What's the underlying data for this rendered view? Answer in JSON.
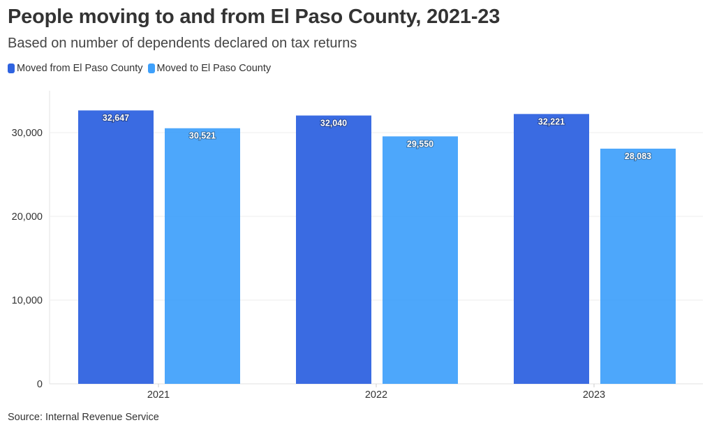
{
  "header": {
    "title": "People moving to and from El Paso County, 2021-23",
    "subtitle": "Based on number of dependents declared on tax returns"
  },
  "footer": {
    "source": "Source: Internal Revenue Service"
  },
  "chart_data": {
    "type": "bar",
    "title": "People moving to and from El Paso County, 2021-23",
    "subtitle": "Based on number of dependents declared on tax returns",
    "categories": [
      "2021",
      "2022",
      "2023"
    ],
    "series": [
      {
        "name": "Moved from El Paso County",
        "color": "#2f63e0",
        "values": [
          32647,
          32040,
          32221
        ]
      },
      {
        "name": "Moved to El Paso County",
        "color": "#3ea0fb",
        "values": [
          30521,
          29550,
          28083
        ]
      }
    ],
    "data_labels": [
      [
        "32,647",
        "32,040",
        "32,221"
      ],
      [
        "30,521",
        "29,550",
        "28,083"
      ]
    ],
    "yticks": [
      0,
      10000,
      20000,
      30000
    ],
    "ytick_labels": [
      "0",
      "10,000",
      "20,000",
      "30,000"
    ],
    "ylim": [
      0,
      35000
    ],
    "grid": true,
    "legend_position": "top-left",
    "xlabel": "",
    "ylabel": ""
  }
}
